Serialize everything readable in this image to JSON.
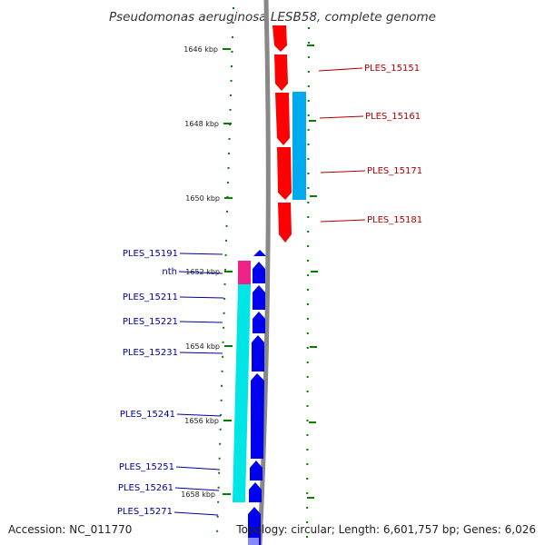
{
  "title": "Pseudomonas aeruginosa LESB58, complete genome",
  "footer": {
    "accession": "Accession: NC_011770",
    "topology": "Topology: circular; Length: 6,601,757 bp; Genes: 6,026"
  },
  "colors": {
    "forward_gene": "#ff0000",
    "forward_cds": "#00aaee",
    "reverse_gene": "#0000ee",
    "reverse_cds": "#00e5e5",
    "trna_like": "#ee2288",
    "tick": "#008000",
    "backbone": "#888888"
  },
  "ticks": [
    {
      "label": "1646 kbp"
    },
    {
      "label": "1648 kbp"
    },
    {
      "label": "1650 kbp"
    },
    {
      "label": "1652 kbp"
    },
    {
      "label": "1654 kbp"
    },
    {
      "label": "1656 kbp"
    },
    {
      "label": "1658 kbp"
    }
  ],
  "forward_labels": [
    {
      "name": "PLES_15151"
    },
    {
      "name": "PLES_15161"
    },
    {
      "name": "PLES_15171"
    },
    {
      "name": "PLES_15181"
    }
  ],
  "reverse_labels": [
    {
      "name": "PLES_15191"
    },
    {
      "name": "nth"
    },
    {
      "name": "PLES_15211"
    },
    {
      "name": "PLES_15221"
    },
    {
      "name": "PLES_15231"
    },
    {
      "name": "PLES_15241"
    },
    {
      "name": "PLES_15251"
    },
    {
      "name": "PLES_15261"
    },
    {
      "name": "PLES_15271"
    }
  ]
}
